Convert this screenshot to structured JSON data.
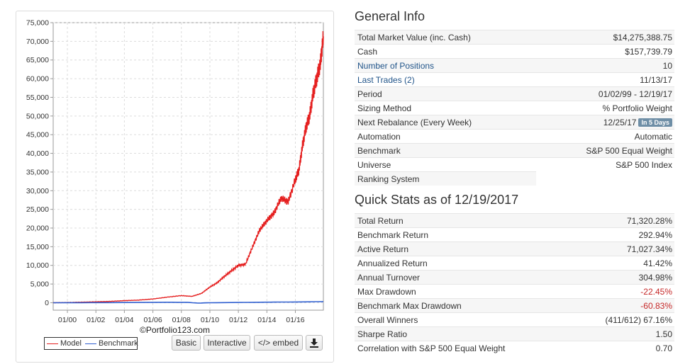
{
  "chart": {
    "credit": "©Portfolio123.com",
    "legend": {
      "model": "Model",
      "benchmark": "Benchmark"
    },
    "buttons": {
      "basic": "Basic",
      "interactive": "Interactive",
      "embed": "</> embed",
      "download_icon": "download-icon"
    },
    "colors": {
      "model": "#e52020",
      "benchmark": "#2f5fd0"
    }
  },
  "chart_data": {
    "type": "line",
    "title": "",
    "xlabel": "",
    "ylabel": "",
    "x_ticks": [
      "01/00",
      "01/02",
      "01/04",
      "01/06",
      "01/08",
      "01/10",
      "01/12",
      "01/14",
      "01/16"
    ],
    "y_ticks": [
      "0",
      "5,000",
      "10,000",
      "15,000",
      "20,000",
      "25,000",
      "30,000",
      "35,000",
      "40,000",
      "45,000",
      "50,000",
      "55,000",
      "60,000",
      "65,000",
      "70,000",
      "75,000"
    ],
    "ylim": [
      -2000,
      75000
    ],
    "xlim": [
      "1999-01-02",
      "2017-12-19"
    ],
    "grid": true,
    "legend_position": "bottom-left",
    "series": [
      {
        "name": "Model",
        "points": [
          [
            "1999-01-02",
            0
          ],
          [
            "2000-01-01",
            50
          ],
          [
            "2001-01-01",
            150
          ],
          [
            "2002-01-01",
            250
          ],
          [
            "2003-01-01",
            350
          ],
          [
            "2004-01-01",
            550
          ],
          [
            "2005-01-01",
            700
          ],
          [
            "2006-01-01",
            1000
          ],
          [
            "2007-01-01",
            1500
          ],
          [
            "2008-01-01",
            1900
          ],
          [
            "2008-10-01",
            1700
          ],
          [
            "2009-06-01",
            2500
          ],
          [
            "2010-01-01",
            4200
          ],
          [
            "2010-07-01",
            5300
          ],
          [
            "2011-01-01",
            7000
          ],
          [
            "2011-07-01",
            8500
          ],
          [
            "2012-01-01",
            10000
          ],
          [
            "2012-07-01",
            10300
          ],
          [
            "2013-01-01",
            15000
          ],
          [
            "2013-07-01",
            19500
          ],
          [
            "2014-01-01",
            22000
          ],
          [
            "2014-07-01",
            24000
          ],
          [
            "2015-01-01",
            28000
          ],
          [
            "2015-07-01",
            27000
          ],
          [
            "2016-01-01",
            33000
          ],
          [
            "2016-04-01",
            35500
          ],
          [
            "2016-07-01",
            42000
          ],
          [
            "2016-10-01",
            47000
          ],
          [
            "2017-01-01",
            50000
          ],
          [
            "2017-04-01",
            56000
          ],
          [
            "2017-07-01",
            60000
          ],
          [
            "2017-10-01",
            64000
          ],
          [
            "2017-12-19",
            71320
          ]
        ]
      },
      {
        "name": "Benchmark",
        "points": [
          [
            "1999-01-02",
            0
          ],
          [
            "2003-01-01",
            30
          ],
          [
            "2007-01-01",
            120
          ],
          [
            "2008-06-01",
            100
          ],
          [
            "2009-03-01",
            -100
          ],
          [
            "2010-01-01",
            0
          ],
          [
            "2012-01-01",
            60
          ],
          [
            "2014-01-01",
            150
          ],
          [
            "2016-01-01",
            200
          ],
          [
            "2017-12-19",
            293
          ]
        ]
      }
    ]
  },
  "general": {
    "title": "General Info",
    "rows": [
      {
        "label": "Total Market Value (inc. Cash)",
        "value": "$14,275,388.75"
      },
      {
        "label": "Cash",
        "value": "$157,739.79"
      },
      {
        "label": "Number of Positions",
        "value": "10"
      },
      {
        "label": "Last Trades (2)",
        "value": "11/13/17"
      },
      {
        "label": "Period",
        "value": "01/02/99 - 12/19/17"
      },
      {
        "label": "Sizing Method",
        "value": "% Portfolio Weight"
      },
      {
        "label": "Next Rebalance (Every Week)",
        "value": "12/25/17",
        "badge": "In 5 Days"
      },
      {
        "label": "Automation",
        "value": "Automatic"
      },
      {
        "label": "Benchmark",
        "value": "S&P 500 Equal Weight"
      },
      {
        "label": "Universe",
        "value": "S&P 500 Index"
      },
      {
        "label": "Ranking System",
        "value": ""
      }
    ]
  },
  "quick": {
    "title": "Quick Stats as of 12/19/2017",
    "rows": [
      {
        "label": "Total Return",
        "value": "71,320.28%"
      },
      {
        "label": "Benchmark Return",
        "value": "292.94%"
      },
      {
        "label": "Active Return",
        "value": "71,027.34%"
      },
      {
        "label": "Annualized Return",
        "value": "41.42%"
      },
      {
        "label": "Annual Turnover",
        "value": "304.98%"
      },
      {
        "label": "Max Drawdown",
        "value": "-22.45%"
      },
      {
        "label": "Benchmark Max Drawdown",
        "value": "-60.83%"
      },
      {
        "label": "Overall Winners",
        "value": "(411/612) 67.16%"
      },
      {
        "label": "Sharpe Ratio",
        "value": "1.50"
      },
      {
        "label": "Correlation with S&P 500 Equal Weight",
        "value": "0.70"
      }
    ]
  }
}
